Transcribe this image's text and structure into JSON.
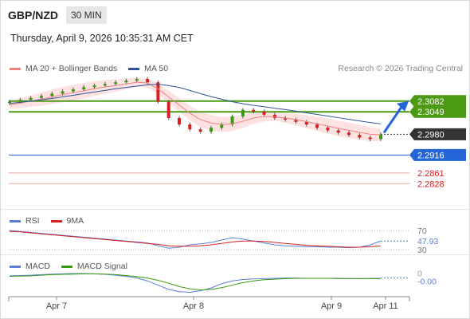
{
  "header": {
    "pair": "GBP/NZD",
    "timeframe": "30 MIN"
  },
  "timestamp": "Thursday, April 9, 2026 10:35:31 AM CET",
  "credit": "Research © 2026 Trading Central",
  "legend": {
    "ma20": {
      "label": "MA 20 + Bollinger Bands",
      "color": "#f08080"
    },
    "ma50": {
      "label": "MA 50",
      "color": "#2e5597"
    }
  },
  "rsi_legend": {
    "rsi": {
      "label": "RSI",
      "color": "#5b7fd6"
    },
    "ma9": {
      "label": "9MA",
      "color": "#d62020"
    }
  },
  "macd_legend": {
    "macd": {
      "label": "MACD",
      "color": "#5b7fd6"
    },
    "signal": {
      "label": "MACD Signal",
      "color": "#3a9a0e"
    }
  },
  "chart_data": [
    {
      "type": "line",
      "panel": "price",
      "title": "",
      "x_ticks": [
        "Apr 7",
        "Apr 8",
        "Apr 9",
        "Apr 11"
      ],
      "ylim": [
        2.276,
        2.316
      ],
      "price_levels": [
        {
          "label": "2.3082",
          "value": 2.3082,
          "color": "#4c9a14",
          "kind": "resistance"
        },
        {
          "label": "2.3049",
          "value": 2.3049,
          "color": "#4c9a14",
          "kind": "resistance"
        },
        {
          "label": "2.2980",
          "value": 2.298,
          "color": "#333333",
          "kind": "current"
        },
        {
          "label": "2.2916",
          "value": 2.2916,
          "color": "#2466d8",
          "kind": "pivot"
        },
        {
          "label": "2.2861",
          "value": 2.2861,
          "color": "#f0a0a0",
          "kind": "support"
        },
        {
          "label": "2.2828",
          "value": 2.2828,
          "color": "#f0a0a0",
          "kind": "support"
        }
      ],
      "series": [
        {
          "name": "Price",
          "values": [
            2.308,
            2.3086,
            2.3092,
            2.3098,
            2.3105,
            2.3112,
            2.3118,
            2.3125,
            2.313,
            2.3135,
            2.314,
            2.3145,
            2.315,
            2.314,
            2.308,
            2.303,
            2.301,
            2.2995,
            2.2988,
            2.3,
            2.301,
            2.3035,
            2.3055,
            2.305,
            2.304,
            2.303,
            2.3025,
            2.3018,
            2.301,
            2.3,
            2.2992,
            2.2985,
            2.2978,
            2.297,
            2.2965,
            2.298
          ]
        },
        {
          "name": "MA 20",
          "values": [
            2.307,
            2.3076,
            2.3082,
            2.3088,
            2.3095,
            2.3102,
            2.3108,
            2.3114,
            2.312,
            2.3126,
            2.313,
            2.3135,
            2.314,
            2.3138,
            2.312,
            2.3095,
            2.307,
            2.3045,
            2.3025,
            2.3015,
            2.301,
            2.3012,
            2.302,
            2.303,
            2.3035,
            2.3034,
            2.303,
            2.3025,
            2.3019,
            2.3012,
            2.3005,
            2.2998,
            2.2992,
            2.2986,
            2.298,
            2.2978
          ]
        },
        {
          "name": "MA 50",
          "values": [
            2.3075,
            2.3078,
            2.3082,
            2.3086,
            2.309,
            2.3095,
            2.31,
            2.3105,
            2.311,
            2.3115,
            2.312,
            2.3124,
            2.3128,
            2.3132,
            2.3134,
            2.313,
            2.3124,
            2.3115,
            2.3105,
            2.3096,
            2.3088,
            2.308,
            2.3074,
            2.3069,
            2.3065,
            2.306,
            2.3056,
            2.3051,
            2.3046,
            2.3041,
            2.3036,
            2.3031,
            2.3026,
            2.3021,
            2.3016,
            2.3012
          ]
        }
      ]
    },
    {
      "type": "line",
      "panel": "rsi",
      "ylim": [
        25,
        75
      ],
      "y_ticks": [
        30,
        70
      ],
      "current_value": "47.93",
      "series": [
        {
          "name": "RSI",
          "values": [
            70,
            68,
            66,
            64,
            62,
            60,
            58,
            56,
            54,
            52,
            50,
            48,
            46,
            44,
            38,
            33,
            35,
            40,
            42,
            45,
            50,
            55,
            52,
            48,
            44,
            40,
            38,
            37,
            36,
            36,
            35,
            35,
            34,
            35,
            40,
            47.93
          ]
        },
        {
          "name": "9MA",
          "values": [
            68,
            67,
            65,
            63,
            61,
            59,
            57,
            55,
            53,
            51,
            49,
            47,
            45,
            43,
            41,
            38,
            37,
            37,
            38,
            40,
            43,
            46,
            48,
            48,
            47,
            45,
            43,
            41,
            39,
            38,
            37,
            36,
            35,
            35,
            36,
            38
          ]
        }
      ]
    },
    {
      "type": "line",
      "panel": "macd",
      "ylim": [
        -0.006,
        0.003
      ],
      "y_ticks": [
        0
      ],
      "current_value": "-0.00",
      "series": [
        {
          "name": "MACD",
          "values": [
            0.0008,
            0.0009,
            0.001,
            0.0012,
            0.0014,
            0.0015,
            0.0016,
            0.0016,
            0.0015,
            0.0013,
            0.001,
            0.0006,
            0.0,
            -0.001,
            -0.0025,
            -0.004,
            -0.0048,
            -0.005,
            -0.0045,
            -0.0035,
            -0.002,
            -0.001,
            -0.0005,
            -0.0003,
            -0.0002,
            -0.0001,
            0.0,
            0.0,
            -0.0001,
            -0.0001,
            -0.0001,
            -0.0002,
            -0.0002,
            -0.0002,
            -0.0001,
            -0.0001
          ]
        },
        {
          "name": "MACD Signal",
          "values": [
            0.0006,
            0.0007,
            0.0008,
            0.001,
            0.0012,
            0.0013,
            0.0014,
            0.0015,
            0.0015,
            0.0014,
            0.0012,
            0.0009,
            0.0005,
            0.0,
            -0.0008,
            -0.0018,
            -0.003,
            -0.0038,
            -0.0042,
            -0.004,
            -0.0034,
            -0.0025,
            -0.0016,
            -0.001,
            -0.0006,
            -0.0004,
            -0.0002,
            -0.0001,
            -0.0001,
            -0.0001,
            -0.0001,
            -0.0001,
            -0.0002,
            -0.0002,
            -0.0002,
            -0.0002
          ]
        }
      ]
    }
  ]
}
